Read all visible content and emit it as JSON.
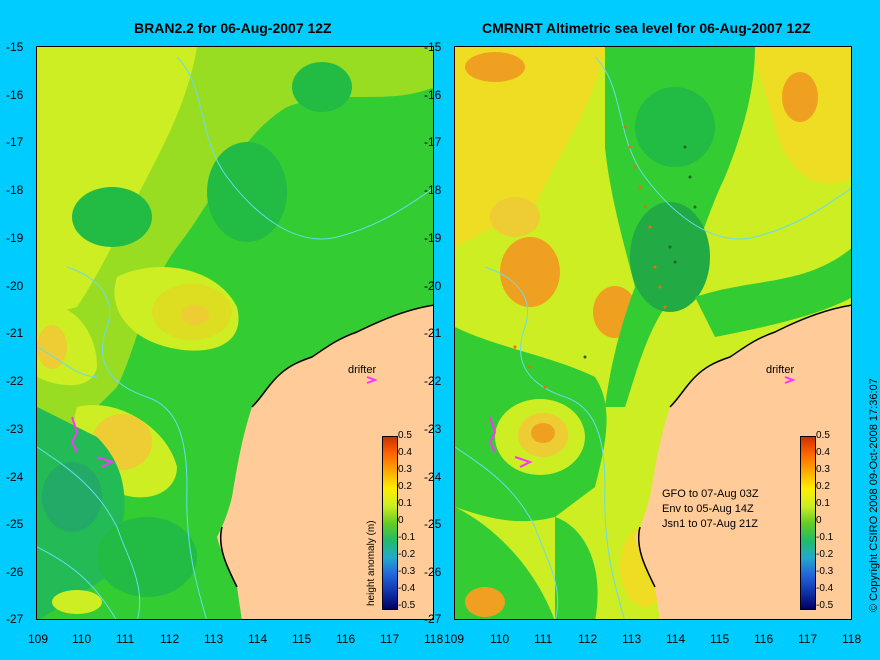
{
  "left_panel": {
    "title": "BRAN2.2 for 06-Aug-2007 12Z"
  },
  "right_panel": {
    "title": "CMRNRT Altimetric sea level  for 06-Aug-2007 12Z",
    "legend": [
      "GFO to 07-Aug 03Z",
      "Env to 05-Aug 14Z",
      "Jsn1 to 07-Aug 21Z"
    ]
  },
  "y_ticks": [
    "-15",
    "-16",
    "-17",
    "-18",
    "-19",
    "-20",
    "-21",
    "-22",
    "-23",
    "-24",
    "-25",
    "-26",
    "-27"
  ],
  "x_ticks": [
    "109",
    "110",
    "111",
    "112",
    "113",
    "114",
    "115",
    "116",
    "117",
    "118"
  ],
  "colorbar": {
    "title": "height anomaly (m)",
    "ticks": [
      "0.5",
      "0.4",
      "0.3",
      "0.2",
      "0.1",
      "0",
      "-0.1",
      "-0.2",
      "-0.3",
      "-0.4",
      "-0.5"
    ]
  },
  "drifter_label": "drifter",
  "copyright": "© Copyright CSIRO 2008  09-Oct-2008 17:36:07",
  "colors": {
    "background": "#00ccff",
    "land": "#ffcc99",
    "ocean_green": "#33cc33",
    "ocean_yellow": "#ccee22",
    "drifter": "#ff33ff"
  }
}
